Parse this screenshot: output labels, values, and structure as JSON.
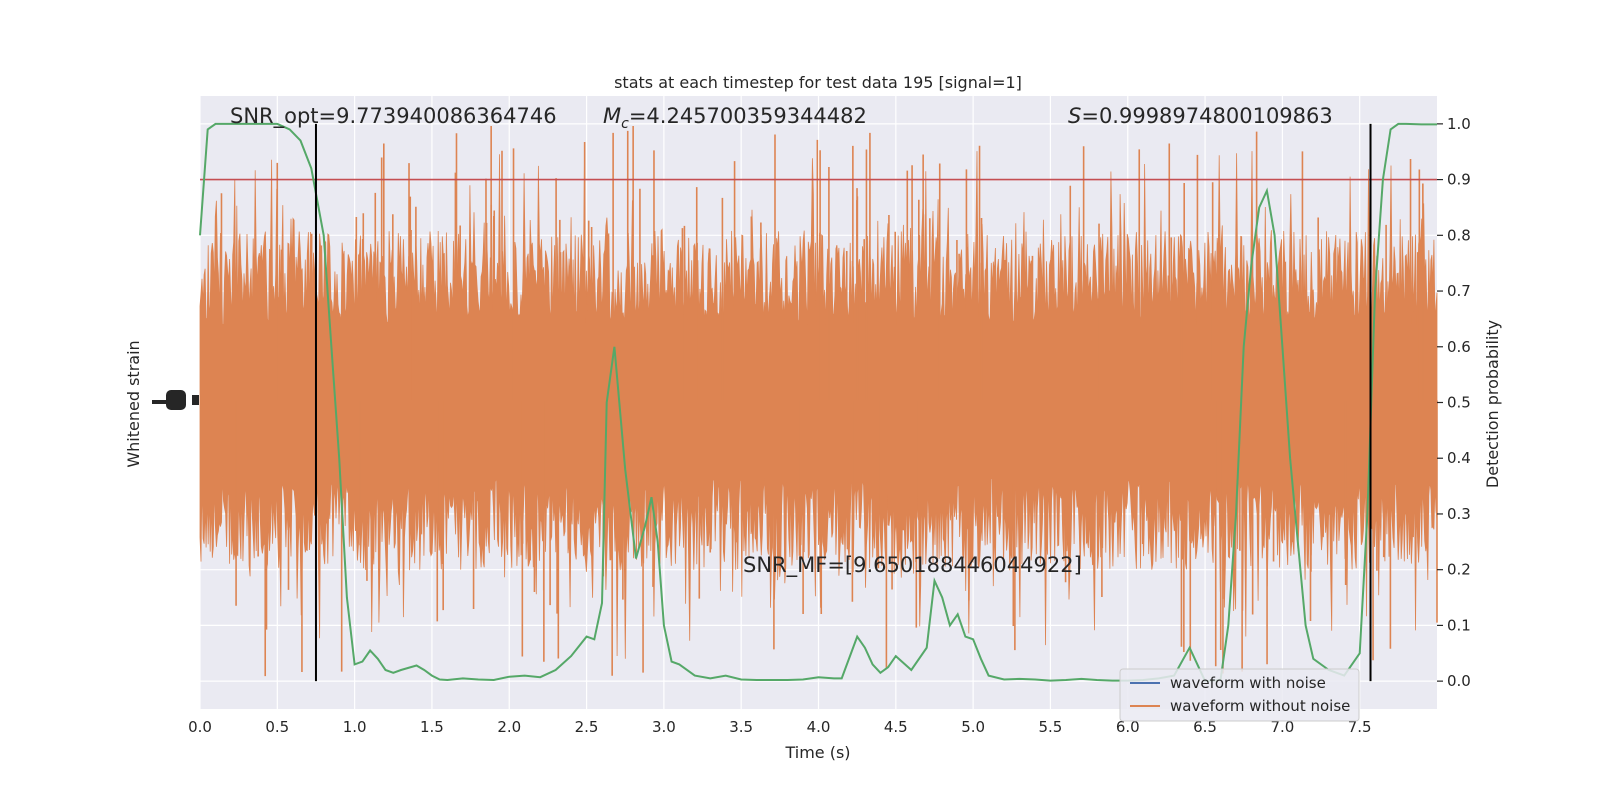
{
  "chart_data": {
    "type": "line",
    "title": "stats at each timestep for test data 195 [signal=1]",
    "xlabel": "Time (s)",
    "ylabel_left": "Whitened strain",
    "ylabel_right": "Detection probability",
    "xlim": [
      0,
      8
    ],
    "ylim_right": [
      -0.05,
      1.05
    ],
    "grid": true,
    "x_ticks": [
      "0.0",
      "0.5",
      "1.0",
      "1.5",
      "2.0",
      "2.5",
      "3.0",
      "3.5",
      "4.0",
      "4.5",
      "5.0",
      "5.5",
      "6.0",
      "6.5",
      "7.0",
      "7.5"
    ],
    "x_tick_values": [
      0,
      0.5,
      1,
      1.5,
      2,
      2.5,
      3,
      3.5,
      4,
      4.5,
      5,
      5.5,
      6,
      6.5,
      7,
      7.5
    ],
    "right_ticks": [
      "0.0",
      "0.1",
      "0.2",
      "0.3",
      "0.4",
      "0.5",
      "0.6",
      "0.7",
      "0.8",
      "0.9",
      "1.0"
    ],
    "right_tick_values": [
      0,
      0.1,
      0.2,
      0.3,
      0.4,
      0.5,
      0.6,
      0.7,
      0.8,
      0.9,
      1.0
    ],
    "threshold": 0.9,
    "vertical_markers": [
      0.75,
      7.57
    ],
    "annotations": {
      "snr_opt_label": "SNR_opt=9.773940086364746",
      "mc_symbol": "M",
      "mc_sub": "c",
      "mc_value": "=4.245700359344482",
      "s_symbol": "S",
      "s_value": "=0.9998974800109863",
      "snr_mf": "SNR_MF=[9.650188446044922]"
    },
    "series": [
      {
        "name": "waveform with noise",
        "color": "#4c72b0"
      },
      {
        "name": "waveform without noise",
        "color": "#dd8452"
      },
      {
        "color": "#55a868",
        "x": [
          0,
          0.05,
          0.1,
          0.2,
          0.3,
          0.4,
          0.5,
          0.58,
          0.65,
          0.72,
          0.8,
          0.85,
          0.9,
          0.95,
          1.0,
          1.05,
          1.1,
          1.15,
          1.2,
          1.25,
          1.3,
          1.4,
          1.45,
          1.5,
          1.55,
          1.6,
          1.7,
          1.8,
          1.9,
          2.0,
          2.1,
          2.2,
          2.3,
          2.4,
          2.5,
          2.55,
          2.6,
          2.63,
          2.68,
          2.75,
          2.82,
          2.88,
          2.92,
          2.96,
          3.0,
          3.05,
          3.1,
          3.2,
          3.3,
          3.4,
          3.5,
          3.6,
          3.7,
          3.8,
          3.9,
          4.0,
          4.1,
          4.15,
          4.25,
          4.3,
          4.35,
          4.4,
          4.45,
          4.5,
          4.6,
          4.7,
          4.75,
          4.8,
          4.85,
          4.9,
          4.95,
          5.0,
          5.05,
          5.1,
          5.2,
          5.3,
          5.4,
          5.5,
          5.6,
          5.7,
          5.8,
          5.9,
          6.0,
          6.1,
          6.2,
          6.3,
          6.4,
          6.5,
          6.6,
          6.65,
          6.7,
          6.75,
          6.8,
          6.85,
          6.9,
          6.95,
          7.0,
          7.05,
          7.1,
          7.15,
          7.2,
          7.3,
          7.4,
          7.5,
          7.55,
          7.6,
          7.65,
          7.7,
          7.75,
          7.8,
          7.9,
          8.0
        ],
        "y": [
          0.8,
          0.99,
          1.0,
          1.0,
          1.0,
          1.0,
          1.0,
          0.99,
          0.97,
          0.92,
          0.8,
          0.6,
          0.4,
          0.15,
          0.03,
          0.035,
          0.055,
          0.04,
          0.02,
          0.015,
          0.02,
          0.028,
          0.02,
          0.01,
          0.003,
          0.002,
          0.005,
          0.003,
          0.002,
          0.008,
          0.01,
          0.007,
          0.02,
          0.045,
          0.08,
          0.075,
          0.14,
          0.5,
          0.6,
          0.38,
          0.22,
          0.28,
          0.33,
          0.25,
          0.1,
          0.035,
          0.03,
          0.01,
          0.005,
          0.01,
          0.003,
          0.002,
          0.002,
          0.002,
          0.003,
          0.007,
          0.005,
          0.005,
          0.08,
          0.06,
          0.03,
          0.015,
          0.025,
          0.045,
          0.02,
          0.06,
          0.18,
          0.15,
          0.1,
          0.12,
          0.08,
          0.075,
          0.04,
          0.01,
          0.003,
          0.004,
          0.003,
          0.001,
          0.002,
          0.004,
          0.002,
          0.001,
          0.001,
          0.002,
          0.005,
          0.01,
          0.06,
          0.0,
          0.002,
          0.1,
          0.3,
          0.6,
          0.75,
          0.85,
          0.88,
          0.8,
          0.6,
          0.4,
          0.25,
          0.1,
          0.04,
          0.02,
          0.01,
          0.05,
          0.3,
          0.7,
          0.9,
          0.99,
          1.0,
          1.0,
          0.999,
          0.999
        ]
      }
    ]
  }
}
